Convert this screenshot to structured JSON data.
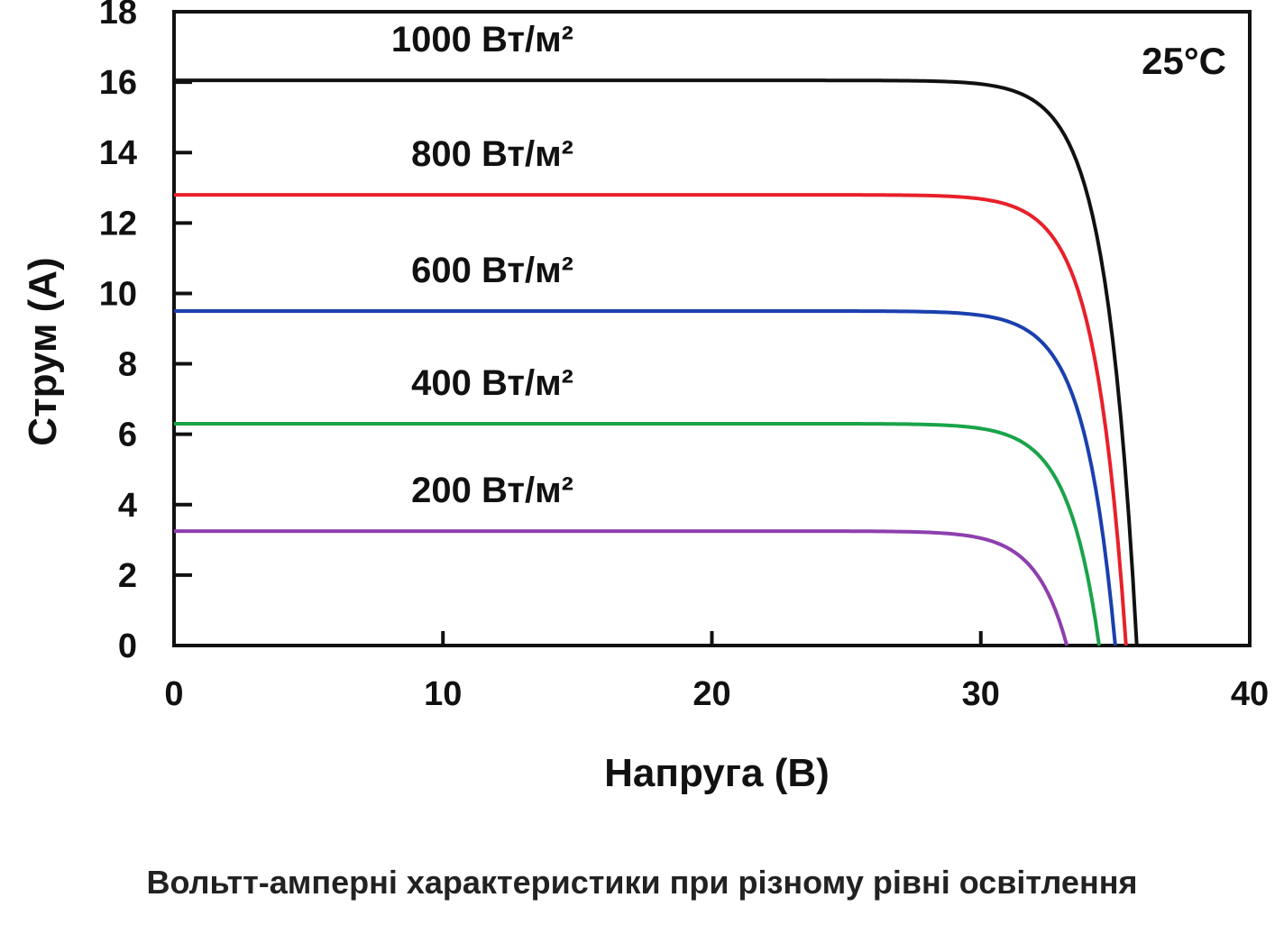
{
  "caption": "Вольтт-амперні характеристики при різному рівні освітлення",
  "chart_data": {
    "type": "line",
    "xlabel": "Напруга (В)",
    "ylabel": "Струм (А)",
    "annotation": "25°C",
    "xlim": [
      0,
      40
    ],
    "ylim": [
      0,
      18
    ],
    "xticks": [
      0,
      10,
      20,
      30,
      40
    ],
    "yticks": [
      0,
      2,
      4,
      6,
      8,
      10,
      12,
      14,
      16,
      18
    ],
    "grid": false,
    "series": [
      {
        "name": "1000 Вт/м²",
        "color": "#111111",
        "isc": 16.05,
        "voc": 35.8
      },
      {
        "name": "800 Вт/м²",
        "color": "#e8202a",
        "isc": 12.8,
        "voc": 35.4
      },
      {
        "name": "600 Вт/м²",
        "color": "#1a3fae",
        "isc": 9.5,
        "voc": 35.0
      },
      {
        "name": "400 Вт/м²",
        "color": "#1aa34a",
        "isc": 6.3,
        "voc": 34.4
      },
      {
        "name": "200 Вт/м²",
        "color": "#8e3fae",
        "isc": 3.25,
        "voc": 33.2
      }
    ]
  }
}
